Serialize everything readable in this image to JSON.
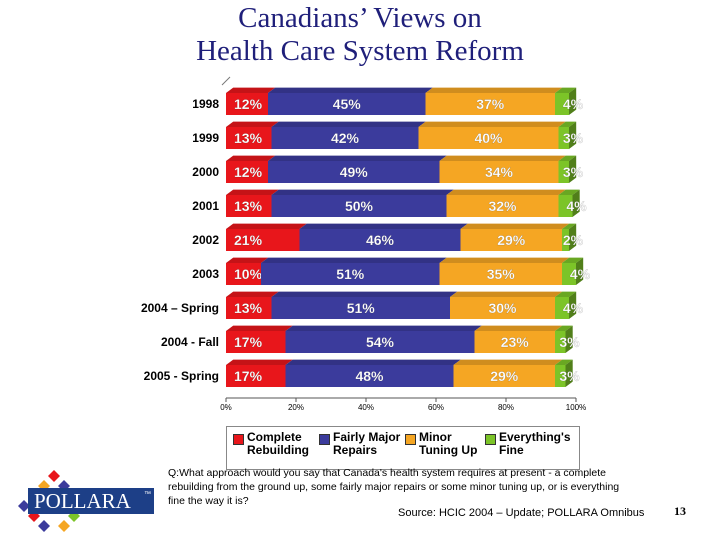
{
  "page": {
    "title_line1": "Canadians’ Views on",
    "title_line2": "Health Care System Reform",
    "question": "Q:What approach would you say that Canada's health system requires at present - a complete rebuilding from the ground up, some fairly major repairs or some minor tuning up, or is everything fine the way it is?",
    "source": "Source:  HCIC 2004 – Update; POLLARA Omnibus",
    "page_number": "13",
    "logo_text": "POLLARA",
    "logo_tm": "™"
  },
  "colors": {
    "complete_rebuilding": "#e8161b",
    "fairly_major_repairs": "#3b3b9c",
    "minor_tuning_up": "#f5a623",
    "everythings_fine": "#7cc428",
    "label_text": "#ffffff"
  },
  "chart_data": {
    "type": "bar",
    "orientation": "horizontal-stacked",
    "categories": [
      "1998",
      "1999",
      "2000",
      "2001",
      "2002",
      "2003",
      "2004 – Spring",
      "2004 - Fall",
      "2005 - Spring"
    ],
    "series": [
      {
        "name": "Complete Rebuilding",
        "color_key": "complete_rebuilding",
        "values": [
          12,
          13,
          12,
          13,
          21,
          10,
          13,
          17,
          17
        ],
        "labels": [
          "12%",
          "13%",
          "12%",
          "13%",
          "21%",
          "10%",
          "13%",
          "17%",
          "17%"
        ]
      },
      {
        "name": "Fairly Major Repairs",
        "color_key": "fairly_major_repairs",
        "values": [
          45,
          42,
          49,
          50,
          46,
          51,
          51,
          54,
          48
        ],
        "labels": [
          "45%",
          "42%",
          "49%",
          "50%",
          "46%",
          "51%",
          "51%",
          "54%",
          "48%"
        ]
      },
      {
        "name": "Minor Tuning Up",
        "color_key": "minor_tuning_up",
        "values": [
          37,
          40,
          34,
          32,
          29,
          35,
          30,
          23,
          29
        ],
        "labels": [
          "37%",
          "40%",
          "34%",
          "32%",
          "29%",
          "35%",
          "30%",
          "23%",
          "29%"
        ]
      },
      {
        "name": "Everything's Fine",
        "color_key": "everythings_fine",
        "values": [
          4,
          3,
          3,
          4,
          2,
          4,
          4,
          3,
          3
        ],
        "labels": [
          "4%",
          "3%",
          "3%",
          "4%",
          "2%",
          "4%",
          "4%",
          "3%",
          "3%"
        ]
      }
    ],
    "xlim": [
      0,
      100
    ],
    "x_ticks": [
      0,
      20,
      40,
      60,
      80,
      100
    ],
    "x_tick_labels": [
      "0%",
      "20%",
      "40%",
      "60%",
      "80%",
      "100%"
    ],
    "legend": {
      "position": "bottom",
      "items": [
        {
          "line1": "Complete",
          "line2": "Rebuilding",
          "color_key": "complete_rebuilding"
        },
        {
          "line1": "Fairly Major",
          "line2": "Repairs",
          "color_key": "fairly_major_repairs"
        },
        {
          "line1": "Minor",
          "line2": "Tuning Up",
          "color_key": "minor_tuning_up"
        },
        {
          "line1": "Everything's",
          "line2": "Fine",
          "color_key": "everythings_fine"
        }
      ]
    }
  }
}
